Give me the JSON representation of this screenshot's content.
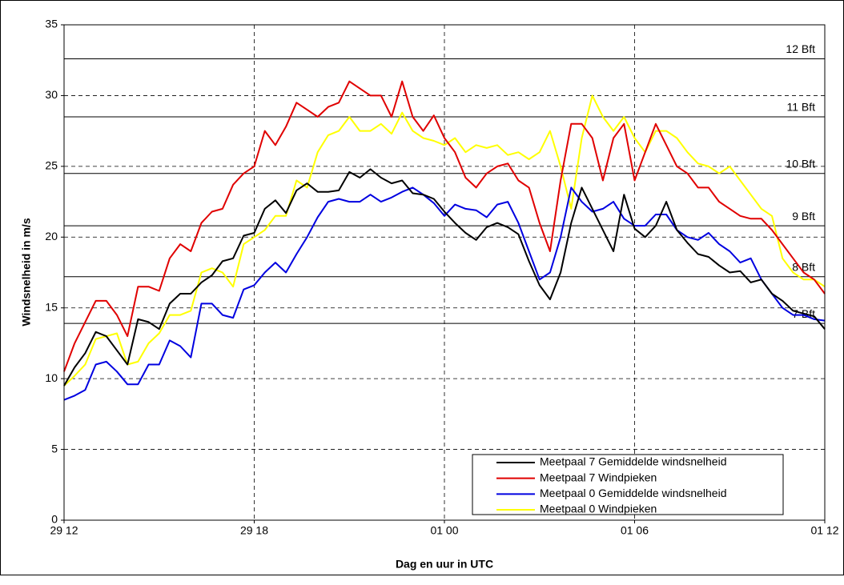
{
  "chart_data": {
    "type": "line",
    "x_label": "Dag en uur in UTC",
    "y_label": "Windsnelheid in m/s",
    "x": [
      0,
      20,
      40,
      60,
      80,
      100,
      120,
      140,
      160,
      180,
      200,
      220,
      240,
      260,
      280,
      300,
      320,
      340,
      360,
      380,
      400,
      420,
      440,
      460,
      480,
      500,
      520,
      540,
      560,
      580,
      600,
      620,
      640,
      660,
      680,
      700,
      720,
      740,
      760,
      780,
      800,
      820,
      840,
      860,
      880,
      900,
      920,
      940,
      960,
      980,
      1000,
      1020,
      1040,
      1060,
      1080,
      1100,
      1120,
      1140,
      1160,
      1180,
      1200,
      1220,
      1240,
      1260,
      1280,
      1300,
      1320,
      1340,
      1360,
      1380,
      1400,
      1420,
      1440
    ],
    "xlim": [
      0,
      1440
    ],
    "xticks": [
      {
        "value": 0,
        "label": "29 12"
      },
      {
        "value": 360,
        "label": "29 18"
      },
      {
        "value": 720,
        "label": "01 00"
      },
      {
        "value": 1080,
        "label": "01 06"
      },
      {
        "value": 1440,
        "label": "01 12"
      }
    ],
    "ylim": [
      0,
      35
    ],
    "yticks": [
      0,
      5,
      10,
      15,
      20,
      25,
      30,
      35
    ],
    "grid": true,
    "legend_position": "lower right",
    "reference_lines": [
      {
        "value": 32.6,
        "label": "12 Bft"
      },
      {
        "value": 28.5,
        "label": "11 Bft"
      },
      {
        "value": 24.5,
        "label": "10 Bft"
      },
      {
        "value": 20.8,
        "label": "9 Bft"
      },
      {
        "value": 17.2,
        "label": "8 Bft"
      },
      {
        "value": 13.9,
        "label": "7 Bft"
      }
    ],
    "series": [
      {
        "name": "Meetpaal 7 Gemiddelde windsnelheid",
        "color": "#000000",
        "values": [
          9.5,
          10.8,
          11.8,
          13.3,
          13,
          12,
          11,
          14.2,
          14,
          13.5,
          15.3,
          16,
          16,
          16.8,
          17.3,
          18.3,
          18.5,
          20.1,
          20.3,
          22,
          22.6,
          21.7,
          23.3,
          23.8,
          23.2,
          23.2,
          23.3,
          24.6,
          24.2,
          24.8,
          24.2,
          23.8,
          24,
          23.1,
          23,
          22.7,
          21.8,
          21,
          20.3,
          19.8,
          20.7,
          21,
          20.7,
          20.2,
          18.3,
          16.6,
          15.6,
          17.5,
          21,
          23.5,
          22,
          20.5,
          19,
          23,
          20.6,
          20,
          20.8,
          22.5,
          20.5,
          19.6,
          18.8,
          18.6,
          18,
          17.5,
          17.6,
          16.8,
          17,
          16,
          15.5,
          14.8,
          14.6,
          14.4,
          13.5
        ]
      },
      {
        "name": "Meetpaal 7 Windpieken",
        "color": "#e00000",
        "values": [
          10.5,
          12.5,
          14,
          15.5,
          15.5,
          14.5,
          13,
          16.5,
          16.5,
          16.2,
          18.5,
          19.5,
          19,
          21,
          21.8,
          22,
          23.7,
          24.5,
          25,
          27.5,
          26.5,
          27.8,
          29.5,
          29,
          28.5,
          29.2,
          29.5,
          31,
          30.5,
          30,
          30,
          28.5,
          31,
          28.5,
          27.5,
          28.6,
          27,
          26,
          24.2,
          23.5,
          24.5,
          25,
          25.2,
          24,
          23.5,
          21,
          19,
          24,
          28,
          28,
          27,
          24,
          27,
          28,
          24,
          26,
          28,
          26.5,
          25,
          24.5,
          23.5,
          23.5,
          22.5,
          22,
          21.5,
          21.3,
          21.3,
          20.5,
          19.5,
          18.5,
          17.5,
          17,
          16
        ]
      },
      {
        "name": "Meetpaal 0 Gemiddelde windsnelheid",
        "color": "#0000e0",
        "values": [
          8.5,
          8.8,
          9.2,
          11,
          11.2,
          10.5,
          9.6,
          9.6,
          11,
          11,
          12.7,
          12.3,
          11.5,
          15.3,
          15.3,
          14.5,
          14.3,
          16.3,
          16.6,
          17.5,
          18.2,
          17.5,
          18.8,
          20,
          21.4,
          22.5,
          22.7,
          22.5,
          22.5,
          23,
          22.5,
          22.8,
          23.2,
          23.5,
          23,
          22.4,
          21.5,
          22.3,
          22,
          21.9,
          21.4,
          22.3,
          22.5,
          21,
          19,
          17,
          17.5,
          20,
          23.5,
          22.5,
          21.8,
          22,
          22.5,
          21.3,
          20.8,
          20.8,
          21.6,
          21.6,
          20.5,
          20,
          19.8,
          20.3,
          19.5,
          19,
          18.2,
          18.5,
          17,
          16,
          15,
          14.5,
          14.5,
          14.2,
          14.1
        ]
      },
      {
        "name": "Meetpaal 0 Windpieken",
        "color": "#ffff00",
        "values": [
          9.5,
          10.2,
          11,
          12.8,
          13,
          13.2,
          11,
          11.2,
          12.5,
          13.2,
          14.5,
          14.5,
          14.8,
          17.5,
          17.8,
          17.5,
          16.5,
          19.5,
          20,
          20.5,
          21.5,
          21.5,
          24,
          23.5,
          26,
          27.2,
          27.5,
          28.5,
          27.5,
          27.5,
          28,
          27.3,
          28.8,
          27.5,
          27,
          26.8,
          26.5,
          27,
          26,
          26.5,
          26.3,
          26.5,
          25.8,
          26,
          25.5,
          26,
          27.5,
          25,
          22,
          27,
          30,
          28.5,
          27.5,
          28.5,
          27,
          26,
          27.5,
          27.5,
          27,
          26,
          25.2,
          25,
          24.5,
          25,
          24,
          23,
          22,
          21.5,
          18.5,
          17.5,
          17,
          17,
          16.5
        ]
      }
    ]
  }
}
